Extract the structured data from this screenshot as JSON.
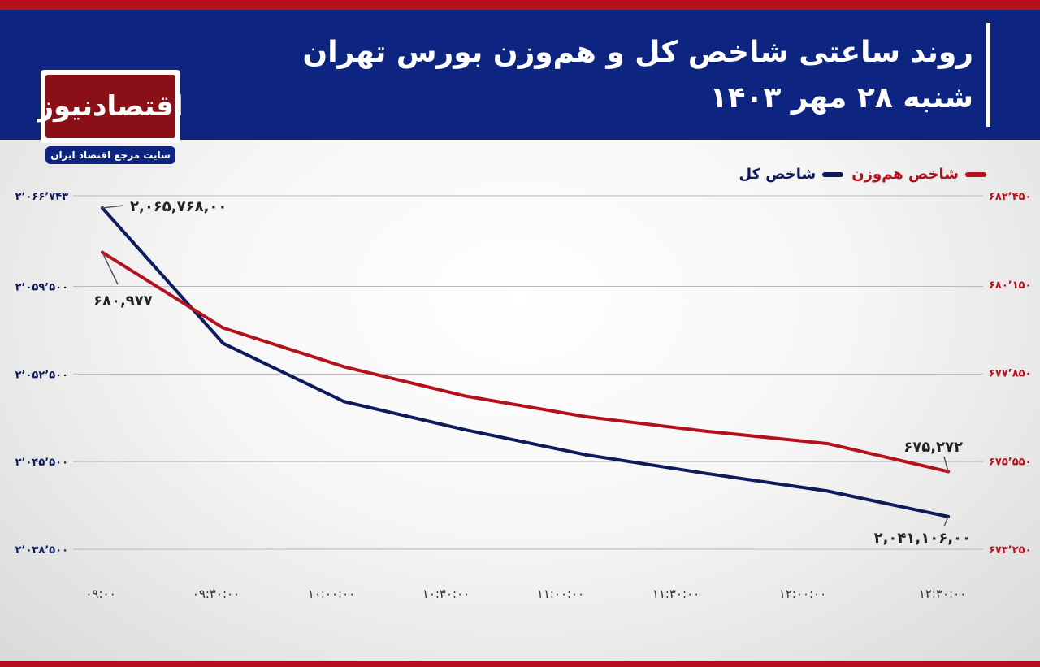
{
  "header": {
    "title_line1": "روند ساعتی شاخص کل و هم‌وزن بورس تهران",
    "title_line2": "شنبه ۲۸ مهر ۱۴۰۳"
  },
  "logo": {
    "name": "اقتصادنیوز",
    "subtitle": "سایت مرجع اقتصاد ایران"
  },
  "colors": {
    "header_bg": "#0d2580",
    "accent_red": "#b5111c",
    "series_total": "#0d1a5c",
    "series_equal": "#b5111c"
  },
  "chart_data": {
    "type": "line",
    "title": "روند ساعتی شاخص کل و هم‌وزن بورس تهران",
    "subtitle": "شنبه ۲۸ مهر ۱۴۰۳",
    "x": [
      "۰۹:۰۰",
      "۰۹:۳۰:۰۰",
      "۱۰:۰۰:۰۰",
      "۱۰:۳۰:۰۰",
      "۱۱:۰۰:۰۰",
      "۱۱:۳۰:۰۰",
      "۱۲:۰۰:۰۰",
      "۱۲:۳۰:۰۰"
    ],
    "legend_position": "top-right",
    "grid": true,
    "left_axis": {
      "ylim": [
        2038500,
        2066743
      ],
      "ticks": [
        {
          "value": 2066743,
          "label": "۲٬۰۶۶٬۷۴۳"
        },
        {
          "value": 2059500,
          "label": "۲٬۰۵۹٬۵۰۰"
        },
        {
          "value": 2052500,
          "label": "۲٬۰۵۲٬۵۰۰"
        },
        {
          "value": 2045500,
          "label": "۲٬۰۴۵٬۵۰۰"
        },
        {
          "value": 2038500,
          "label": "۲٬۰۳۸٬۵۰۰"
        }
      ]
    },
    "right_axis": {
      "ylim": [
        673250,
        682450
      ],
      "ticks": [
        {
          "value": 682450,
          "label": "۶۸۲٬۴۵۰"
        },
        {
          "value": 680150,
          "label": "۶۸۰٬۱۵۰"
        },
        {
          "value": 677850,
          "label": "۶۷۷٬۸۵۰"
        },
        {
          "value": 675550,
          "label": "۶۷۵٬۵۵۰"
        },
        {
          "value": 673250,
          "label": "۶۷۳٬۲۵۰"
        }
      ]
    },
    "series": [
      {
        "name": "شاخص کل",
        "axis": "left",
        "color": "#0d1a5c",
        "values": [
          2065768,
          2054950,
          2050300,
          2048050,
          2046050,
          2044550,
          2043150,
          2041106
        ],
        "labels": [
          {
            "index": 0,
            "text": "۲,۰۶۵,۷۶۸,۰۰"
          },
          {
            "index": 7,
            "text": "۲,۰۴۱,۱۰۶,۰۰"
          }
        ]
      },
      {
        "name": "شاخص هم‌وزن",
        "axis": "right",
        "color": "#b5111c",
        "values": [
          680977,
          679010,
          678000,
          677240,
          676700,
          676320,
          676000,
          675272
        ],
        "labels": [
          {
            "index": 0,
            "text": "۶۸۰,۹۷۷"
          },
          {
            "index": 7,
            "text": "۶۷۵,۲۷۲"
          }
        ]
      }
    ]
  }
}
